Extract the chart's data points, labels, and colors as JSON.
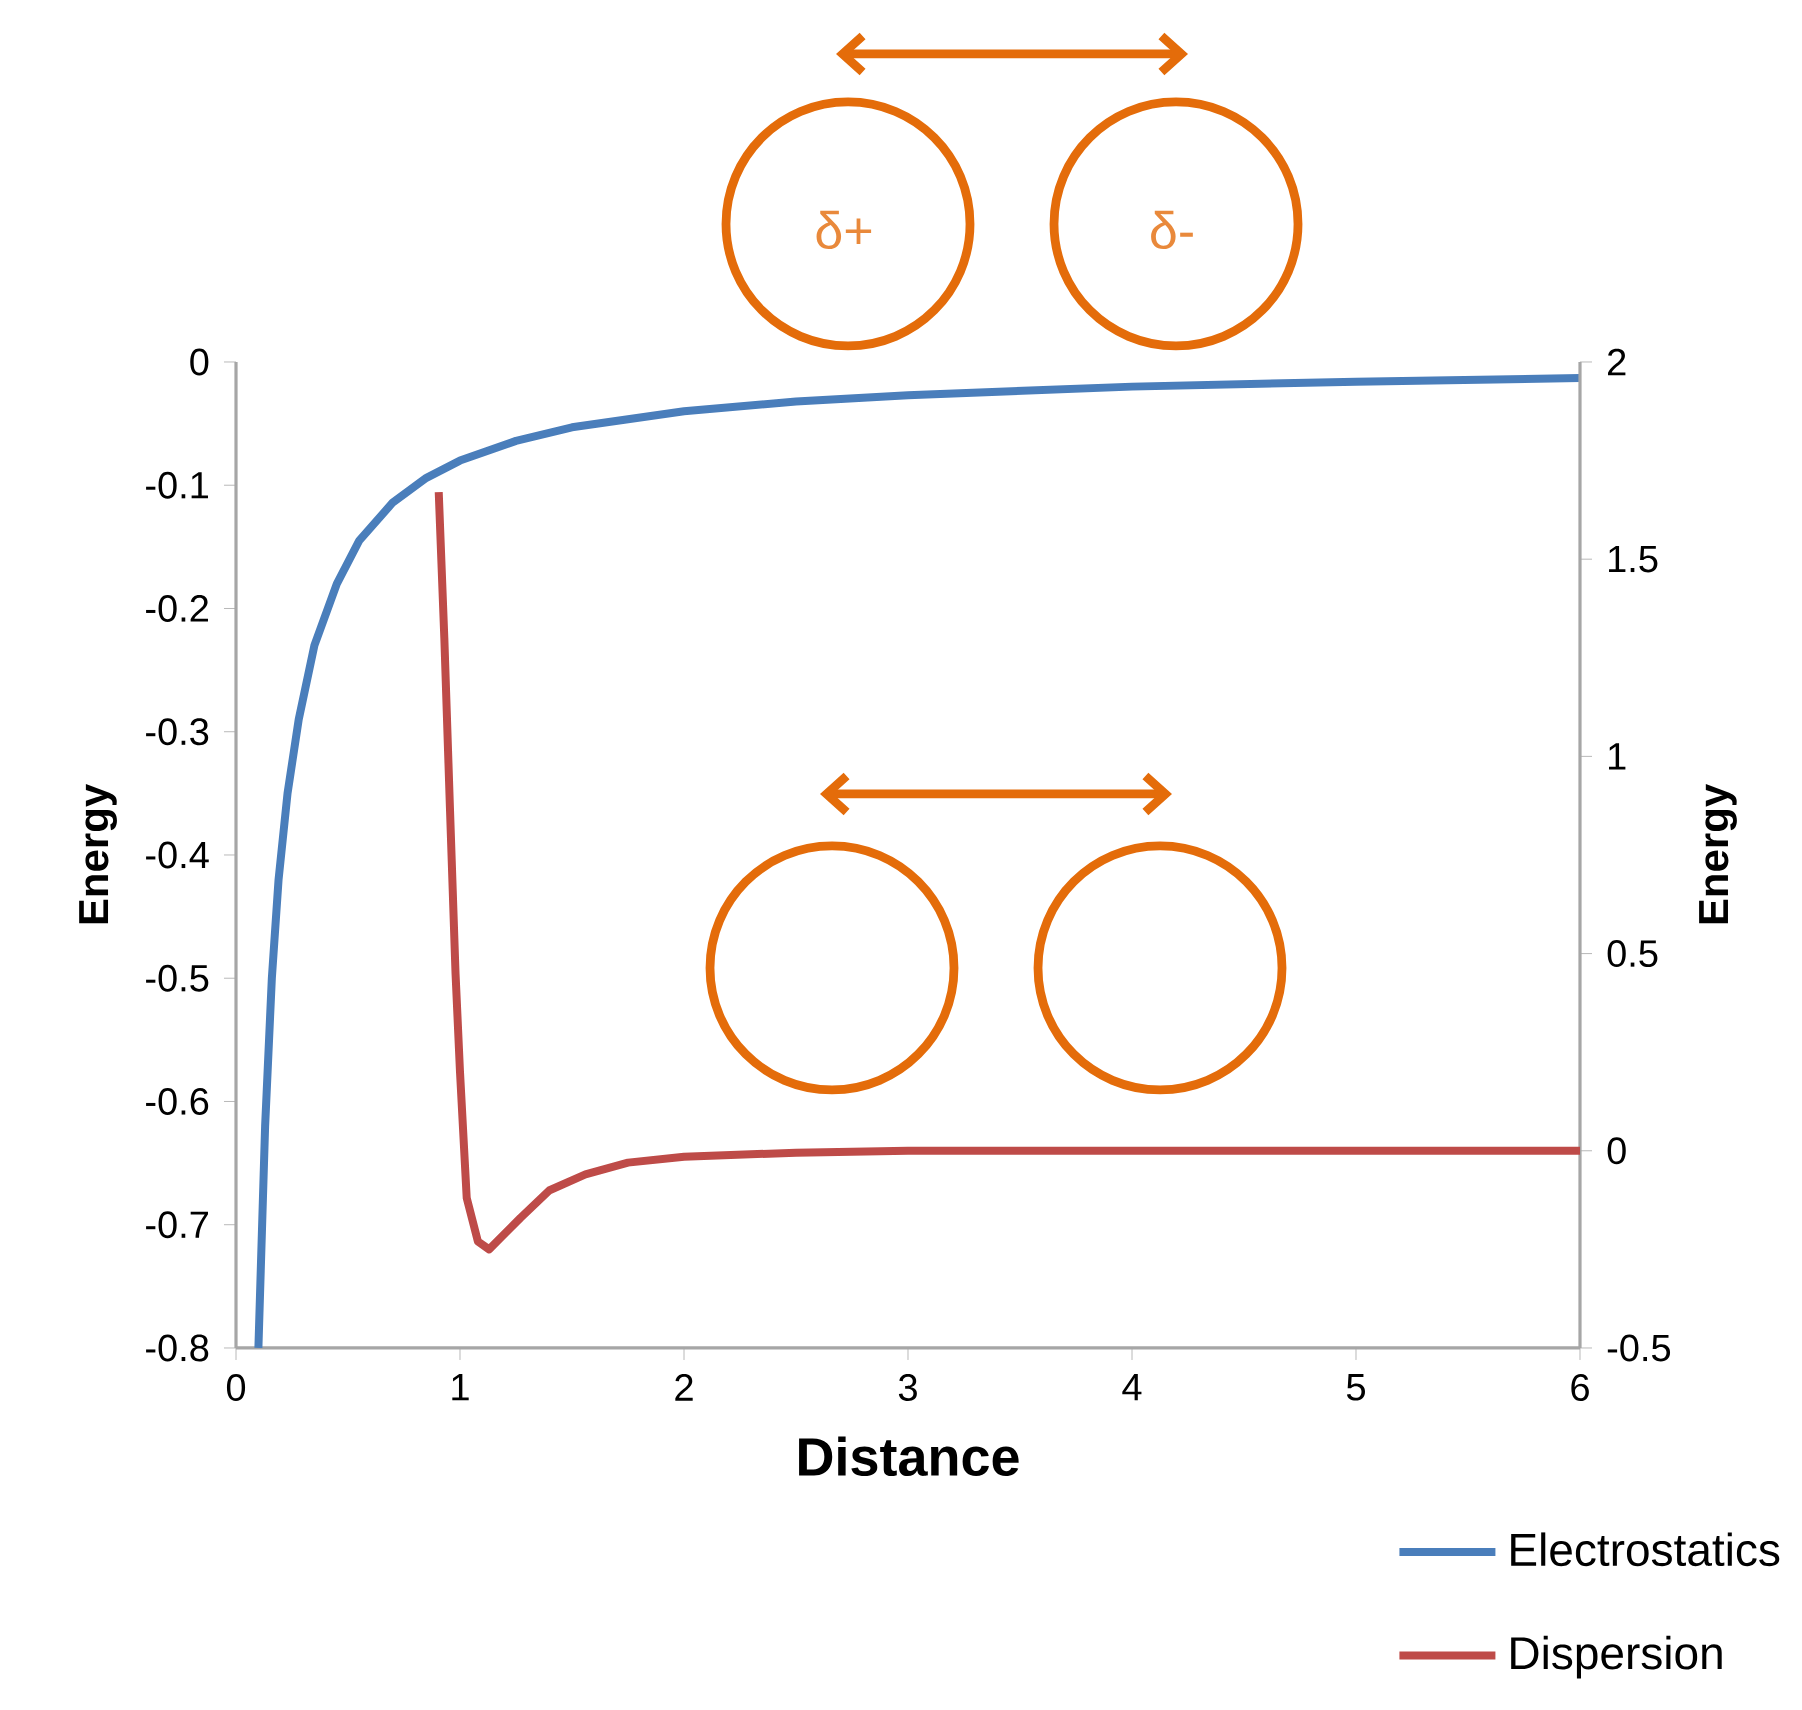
{
  "chart_data": {
    "type": "line",
    "xlabel": "Distance",
    "ylabel": "Energy",
    "y2label": "Energy",
    "xlim": [
      0,
      6
    ],
    "xticks": [
      0,
      1,
      2,
      3,
      4,
      5,
      6
    ],
    "ylim": [
      -0.8,
      0
    ],
    "yticks": [
      -0.8,
      -0.7,
      -0.6,
      -0.5,
      -0.4,
      -0.3,
      -0.2,
      -0.1,
      0
    ],
    "y2lim": [
      -0.5,
      2
    ],
    "y2ticks": [
      -0.5,
      0,
      0.5,
      1,
      1.5,
      2
    ],
    "series": [
      {
        "name": "Electrostatics",
        "color": "#4a7ebb",
        "x": [
          0.1,
          0.13,
          0.16,
          0.19,
          0.23,
          0.28,
          0.35,
          0.45,
          0.55,
          0.7,
          0.85,
          1.0,
          1.25,
          1.5,
          2.0,
          2.5,
          3.0,
          4.0,
          5.0,
          6.0
        ],
        "values": [
          -0.8,
          -0.62,
          -0.5,
          -0.42,
          -0.35,
          -0.29,
          -0.23,
          -0.18,
          -0.145,
          -0.114,
          -0.094,
          -0.08,
          -0.064,
          -0.053,
          -0.04,
          -0.032,
          -0.027,
          -0.02,
          -0.016,
          -0.013
        ]
      },
      {
        "name": "Dispersion",
        "color": "#be4b48",
        "axis": "y2",
        "x": [
          0.905,
          0.93,
          0.955,
          0.98,
          1.0,
          1.03,
          1.08,
          1.13,
          1.2,
          1.27,
          1.4,
          1.56,
          1.75,
          2.0,
          2.5,
          3.0,
          4.0,
          6.0
        ],
        "values": [
          1.67,
          1.3,
          0.87,
          0.45,
          0.2,
          -0.12,
          -0.23,
          -0.25,
          -0.21,
          -0.17,
          -0.1,
          -0.06,
          -0.03,
          -0.015,
          -0.005,
          0,
          0,
          0
        ]
      }
    ],
    "annotations": [
      "δ+",
      "δ-"
    ],
    "legend": "bottom right",
    "grid": false,
    "marker": "none",
    "line_style": "solid"
  }
}
